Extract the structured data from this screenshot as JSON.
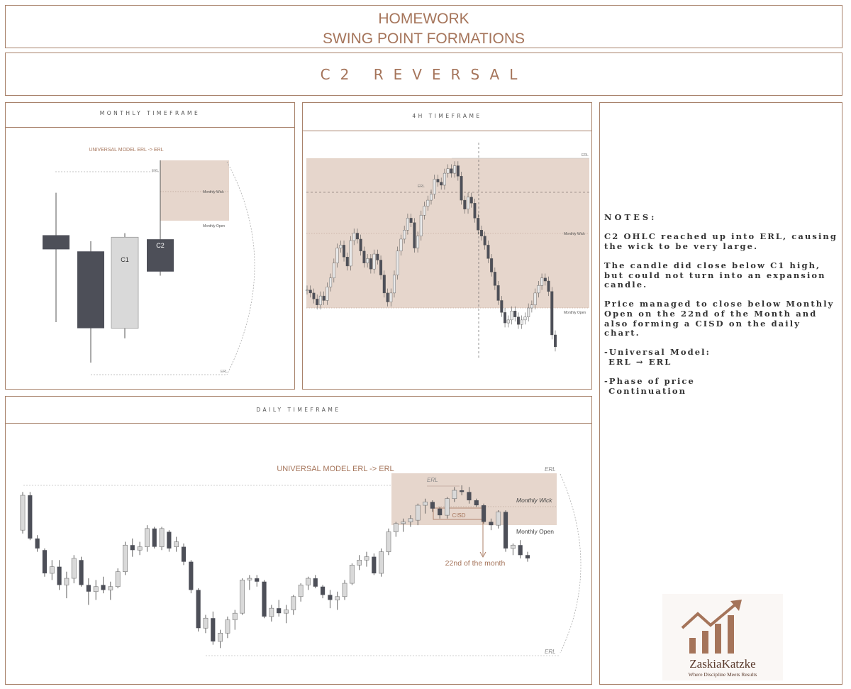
{
  "header": {
    "line1": "HOMEWORK",
    "line2": "SWING POINT FORMATIONS"
  },
  "subheader": {
    "title": "C2 REVERSAL"
  },
  "panels": {
    "monthly": {
      "title": "MONTHLY TIMEFRAME",
      "model_label": "UNIVERSAL MODEL ERL -> ERL",
      "erl_top": "ERL",
      "erl_bottom": "ERL",
      "monthly_wick": "Monthly Wick",
      "monthly_open": "Monthly Open",
      "c1": "C1",
      "c2": "C2"
    },
    "h4": {
      "title": "4H TIMEFRAME",
      "erl_top": "ERL",
      "erl_inner": "ERL",
      "monthly_wick": "Monthly Wick",
      "monthly_open": "Monthly Open"
    },
    "daily": {
      "title": "DAILY TIMEFRAME",
      "model_label": "UNIVERSAL MODEL ERL -> ERL",
      "erl_top": "ERL",
      "erl_inner": "ERL",
      "erl_bottom": "ERL",
      "monthly_wick": "Monthly Wick",
      "monthly_open": "Monthly Open",
      "cisd": "CISD",
      "annotation": "22nd of the month"
    }
  },
  "notes": {
    "heading": "NOTES:",
    "items": [
      "C2 OHLC reached up into ERL, causing the wick to be very large.",
      "The candle did close below C1 high, but could not turn into an expansion candle.",
      "Price managed to close below Monthly Open on the 22nd of the Month and also forming a CISD on the daily chart.",
      "-Universal Model:\n ERL → ERL",
      "-Phase of price\n Continuation"
    ]
  },
  "logo": {
    "name": "ZaskiaKatzke",
    "tagline": "Where Discipline Meets Results"
  },
  "colors": {
    "accent": "#a5745a",
    "zone": "#e6d6cc",
    "bear": "#4d4f58",
    "bull": "#d9d9d9"
  },
  "chart_data": [
    {
      "type": "candlestick",
      "timeframe": "monthly",
      "candles": [
        {
          "o": 0.63,
          "h": 0.84,
          "l": 0.2,
          "c": 0.56
        },
        {
          "o": 0.55,
          "h": 0.6,
          "l": 0.0,
          "c": 0.17
        },
        {
          "o": 0.17,
          "h": 0.64,
          "l": 0.12,
          "c": 0.62,
          "label": "C1"
        },
        {
          "o": 0.61,
          "h": 1.0,
          "l": 0.43,
          "c": 0.45,
          "label": "C2"
        }
      ],
      "zones": [
        {
          "name": "Monthly Wick",
          "from": 0.62,
          "to": 0.96
        }
      ]
    },
    {
      "type": "candlestick",
      "timeframe": "daily",
      "candles": [
        {
          "o": 0.73,
          "h": 0.96,
          "l": 0.71,
          "c": 0.94
        },
        {
          "o": 0.94,
          "h": 0.96,
          "l": 0.67,
          "c": 0.68
        },
        {
          "o": 0.68,
          "h": 0.7,
          "l": 0.6,
          "c": 0.62
        },
        {
          "o": 0.61,
          "h": 0.62,
          "l": 0.45,
          "c": 0.47
        },
        {
          "o": 0.47,
          "h": 0.55,
          "l": 0.43,
          "c": 0.51
        },
        {
          "o": 0.51,
          "h": 0.55,
          "l": 0.37,
          "c": 0.4
        },
        {
          "o": 0.4,
          "h": 0.48,
          "l": 0.32,
          "c": 0.44
        },
        {
          "o": 0.44,
          "h": 0.58,
          "l": 0.41,
          "c": 0.56
        },
        {
          "o": 0.55,
          "h": 0.57,
          "l": 0.39,
          "c": 0.4
        },
        {
          "o": 0.4,
          "h": 0.44,
          "l": 0.28,
          "c": 0.36
        },
        {
          "o": 0.36,
          "h": 0.43,
          "l": 0.31,
          "c": 0.39
        },
        {
          "o": 0.4,
          "h": 0.45,
          "l": 0.35,
          "c": 0.37
        },
        {
          "o": 0.37,
          "h": 0.42,
          "l": 0.31,
          "c": 0.39
        },
        {
          "o": 0.39,
          "h": 0.5,
          "l": 0.38,
          "c": 0.48
        },
        {
          "o": 0.48,
          "h": 0.66,
          "l": 0.46,
          "c": 0.64
        },
        {
          "o": 0.64,
          "h": 0.68,
          "l": 0.57,
          "c": 0.61
        },
        {
          "o": 0.61,
          "h": 0.66,
          "l": 0.58,
          "c": 0.63
        },
        {
          "o": 0.63,
          "h": 0.76,
          "l": 0.6,
          "c": 0.74
        },
        {
          "o": 0.74,
          "h": 0.75,
          "l": 0.62,
          "c": 0.63
        },
        {
          "o": 0.63,
          "h": 0.75,
          "l": 0.61,
          "c": 0.74
        },
        {
          "o": 0.72,
          "h": 0.73,
          "l": 0.6,
          "c": 0.62
        },
        {
          "o": 0.63,
          "h": 0.69,
          "l": 0.6,
          "c": 0.66
        },
        {
          "o": 0.63,
          "h": 0.65,
          "l": 0.52,
          "c": 0.54
        },
        {
          "o": 0.54,
          "h": 0.55,
          "l": 0.35,
          "c": 0.37
        },
        {
          "o": 0.37,
          "h": 0.38,
          "l": 0.12,
          "c": 0.14
        },
        {
          "o": 0.14,
          "h": 0.22,
          "l": 0.11,
          "c": 0.2
        },
        {
          "o": 0.2,
          "h": 0.24,
          "l": 0.04,
          "c": 0.06
        },
        {
          "o": 0.06,
          "h": 0.13,
          "l": 0.02,
          "c": 0.11
        },
        {
          "o": 0.11,
          "h": 0.21,
          "l": 0.08,
          "c": 0.19
        },
        {
          "o": 0.19,
          "h": 0.25,
          "l": 0.13,
          "c": 0.23
        },
        {
          "o": 0.23,
          "h": 0.44,
          "l": 0.22,
          "c": 0.43
        },
        {
          "o": 0.43,
          "h": 0.46,
          "l": 0.37,
          "c": 0.44
        },
        {
          "o": 0.44,
          "h": 0.46,
          "l": 0.39,
          "c": 0.42
        },
        {
          "o": 0.42,
          "h": 0.43,
          "l": 0.2,
          "c": 0.21
        },
        {
          "o": 0.21,
          "h": 0.28,
          "l": 0.18,
          "c": 0.26
        },
        {
          "o": 0.26,
          "h": 0.31,
          "l": 0.21,
          "c": 0.23
        },
        {
          "o": 0.23,
          "h": 0.28,
          "l": 0.17,
          "c": 0.25
        },
        {
          "o": 0.25,
          "h": 0.34,
          "l": 0.22,
          "c": 0.33
        },
        {
          "o": 0.33,
          "h": 0.41,
          "l": 0.3,
          "c": 0.4
        },
        {
          "o": 0.4,
          "h": 0.45,
          "l": 0.37,
          "c": 0.44
        },
        {
          "o": 0.44,
          "h": 0.46,
          "l": 0.38,
          "c": 0.39
        },
        {
          "o": 0.39,
          "h": 0.4,
          "l": 0.32,
          "c": 0.34
        },
        {
          "o": 0.34,
          "h": 0.37,
          "l": 0.26,
          "c": 0.31
        },
        {
          "o": 0.31,
          "h": 0.36,
          "l": 0.25,
          "c": 0.33
        },
        {
          "o": 0.33,
          "h": 0.43,
          "l": 0.31,
          "c": 0.41
        },
        {
          "o": 0.41,
          "h": 0.53,
          "l": 0.4,
          "c": 0.52
        },
        {
          "o": 0.52,
          "h": 0.58,
          "l": 0.49,
          "c": 0.55
        },
        {
          "o": 0.55,
          "h": 0.6,
          "l": 0.51,
          "c": 0.57
        },
        {
          "o": 0.57,
          "h": 0.59,
          "l": 0.46,
          "c": 0.47
        },
        {
          "o": 0.47,
          "h": 0.62,
          "l": 0.45,
          "c": 0.6
        },
        {
          "o": 0.6,
          "h": 0.74,
          "l": 0.58,
          "c": 0.72
        },
        {
          "o": 0.72,
          "h": 0.78,
          "l": 0.69,
          "c": 0.77
        },
        {
          "o": 0.77,
          "h": 0.8,
          "l": 0.72,
          "c": 0.78
        },
        {
          "o": 0.78,
          "h": 0.82,
          "l": 0.75,
          "c": 0.8
        },
        {
          "o": 0.79,
          "h": 0.89,
          "l": 0.76,
          "c": 0.88
        },
        {
          "o": 0.88,
          "h": 0.92,
          "l": 0.83,
          "c": 0.9
        },
        {
          "o": 0.9,
          "h": 0.91,
          "l": 0.84,
          "c": 0.86
        },
        {
          "o": 0.86,
          "h": 0.87,
          "l": 0.8,
          "c": 0.82
        },
        {
          "o": 0.82,
          "h": 0.93,
          "l": 0.8,
          "c": 0.92
        },
        {
          "o": 0.92,
          "h": 0.99,
          "l": 0.9,
          "c": 0.97
        },
        {
          "o": 0.97,
          "h": 1.0,
          "l": 0.94,
          "c": 0.96
        },
        {
          "o": 0.96,
          "h": 0.99,
          "l": 0.89,
          "c": 0.91
        },
        {
          "o": 0.91,
          "h": 0.92,
          "l": 0.87,
          "c": 0.88
        },
        {
          "o": 0.88,
          "h": 0.89,
          "l": 0.77,
          "c": 0.78
        },
        {
          "o": 0.78,
          "h": 0.8,
          "l": 0.73,
          "c": 0.76
        },
        {
          "o": 0.76,
          "h": 0.85,
          "l": 0.74,
          "c": 0.84
        },
        {
          "o": 0.84,
          "h": 0.85,
          "l": 0.6,
          "c": 0.62
        },
        {
          "o": 0.62,
          "h": 0.65,
          "l": 0.58,
          "c": 0.64
        },
        {
          "o": 0.64,
          "h": 0.67,
          "l": 0.56,
          "c": 0.58
        },
        {
          "o": 0.58,
          "h": 0.6,
          "l": 0.54,
          "c": 0.56
        }
      ],
      "zones": [
        {
          "name": "Monthly Wick",
          "from": 0.76,
          "to": 1.05
        }
      ],
      "annotations": [
        "CISD",
        "22nd of the month"
      ]
    },
    {
      "type": "line",
      "timeframe": "4H",
      "values": [
        0.12,
        0.1,
        0.06,
        0.02,
        0.08,
        0.05,
        0.14,
        0.2,
        0.3,
        0.4,
        0.42,
        0.34,
        0.28,
        0.45,
        0.5,
        0.46,
        0.38,
        0.3,
        0.33,
        0.26,
        0.36,
        0.32,
        0.22,
        0.1,
        0.04,
        0.1,
        0.22,
        0.38,
        0.46,
        0.52,
        0.6,
        0.57,
        0.4,
        0.48,
        0.62,
        0.68,
        0.72,
        0.76,
        0.86,
        0.84,
        0.82,
        0.9,
        0.93,
        0.9,
        0.95,
        0.88,
        0.72,
        0.66,
        0.74,
        0.7,
        0.6,
        0.52,
        0.48,
        0.42,
        0.33,
        0.24,
        0.15,
        0.05,
        -0.03,
        -0.1,
        -0.08,
        -0.02,
        -0.06,
        -0.11,
        -0.08,
        -0.06,
        0.0,
        0.02,
        0.1,
        0.15,
        0.2,
        0.18,
        0.11,
        -0.18,
        -0.26
      ]
    }
  ]
}
